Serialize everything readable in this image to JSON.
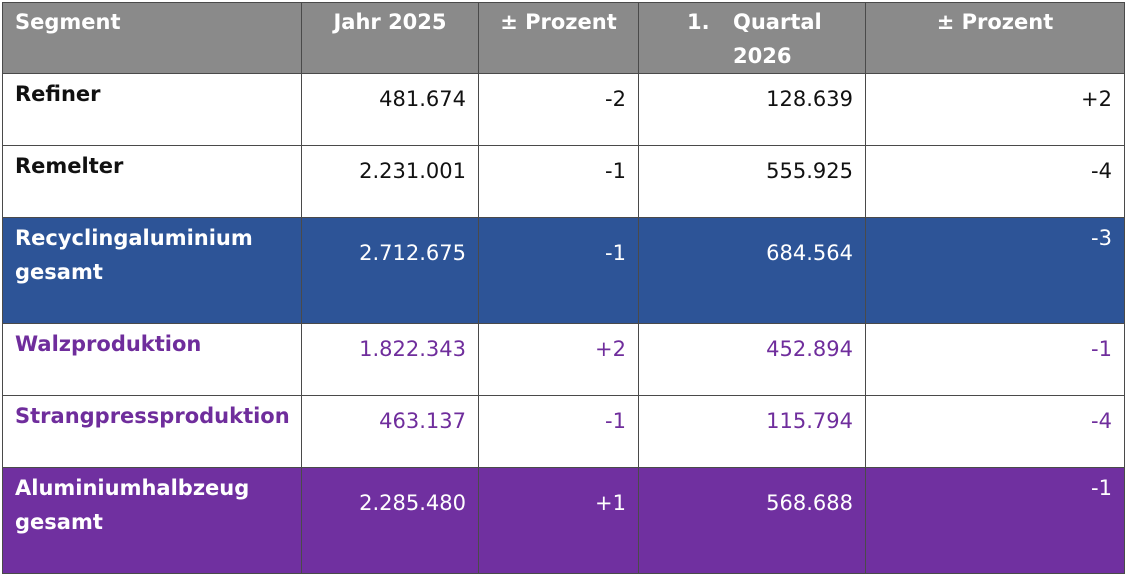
{
  "header": {
    "segment": "Segment",
    "jahr": "Jahr 2025",
    "prozent1": "± Prozent",
    "quartal_num": "1.",
    "quartal_word": "Quartal",
    "quartal_year": "2026",
    "prozent2": "± Prozent"
  },
  "rows": [
    {
      "segment": "Refiner",
      "jahr": "481.674",
      "prozent1": "-2",
      "quartal": "128.639",
      "prozent2": "+2"
    },
    {
      "segment": "Remelter",
      "jahr": "2.231.001",
      "prozent1": "-1",
      "quartal": "555.925",
      "prozent2": "-4"
    },
    {
      "segment": "Recyclingaluminium gesamt",
      "jahr": "2.712.675",
      "prozent1": "-1",
      "quartal": "684.564",
      "prozent2": "-3"
    },
    {
      "segment": "Walzproduktion",
      "jahr": "1.822.343",
      "prozent1": "+2",
      "quartal": "452.894",
      "prozent2": "-1"
    },
    {
      "segment": "Strangpressproduktion",
      "jahr": "463.137",
      "prozent1": "-1",
      "quartal": "115.794",
      "prozent2": "-4"
    },
    {
      "segment": "Aluminiumhalbzeug gesamt",
      "jahr": "2.285.480",
      "prozent1": "+1",
      "quartal": "568.688",
      "prozent2": "-1"
    }
  ],
  "colors": {
    "header_bg": "#8a8a8a",
    "recycling_total_bg": "#2d5497",
    "halbzeug_text": "#6f2d9c",
    "halbzeug_total_bg": "#7030a0"
  }
}
